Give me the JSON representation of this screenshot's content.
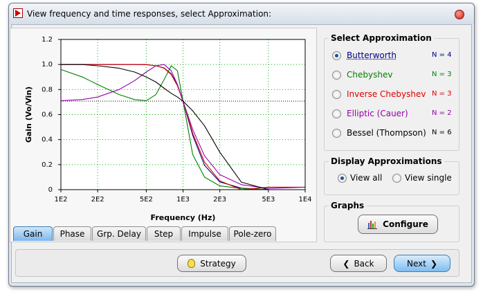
{
  "window": {
    "title": "View frequency and time responses, select Approximation:"
  },
  "chart_data": {
    "type": "line",
    "xlabel": "Frequency (Hz)",
    "ylabel": "Gain (Vo/Vin)",
    "x_log": true,
    "grid": true,
    "grid_color": "#00b000",
    "reference_line": 0.707,
    "xlim": [
      100,
      10000
    ],
    "xticks": [
      {
        "value": 100,
        "label": "1E2"
      },
      {
        "value": 200,
        "label": "2E2"
      },
      {
        "value": 500,
        "label": "5E2"
      },
      {
        "value": 1000,
        "label": "1E3"
      },
      {
        "value": 2000,
        "label": "2E3"
      },
      {
        "value": 5000,
        "label": "5E3"
      },
      {
        "value": 10000,
        "label": "1E4"
      }
    ],
    "ylim": [
      0,
      1.2
    ],
    "yticks": [
      0,
      0.2,
      0.4,
      0.6,
      0.8,
      {
        "value": 1,
        "label": "1.0"
      },
      1.2
    ],
    "x": [
      100,
      150,
      200,
      300,
      400,
      500,
      600,
      700,
      800,
      900,
      1000,
      1200,
      1500,
      2000,
      3000,
      5000,
      10000
    ],
    "series": [
      {
        "name": "Butterworth",
        "color": "#000080",
        "values": [
          1,
          1,
          1,
          1,
          1,
          0.998,
          0.99,
          0.972,
          0.925,
          0.836,
          0.707,
          0.434,
          0.194,
          0.062,
          0.012,
          0,
          0
        ]
      },
      {
        "name": "Chebyshev",
        "color": "#008000",
        "values": [
          0.96,
          0.9,
          0.84,
          0.76,
          0.72,
          0.71,
          0.76,
          0.88,
          0.99,
          0.95,
          0.707,
          0.28,
          0.1,
          0.03,
          0.01,
          0,
          0
        ]
      },
      {
        "name": "Inverse Chebyshev",
        "color": "#e00000",
        "values": [
          1,
          1,
          1,
          1,
          1,
          1,
          0.99,
          0.97,
          0.92,
          0.83,
          0.707,
          0.45,
          0.22,
          0.07,
          0,
          0.02,
          0.02
        ]
      },
      {
        "name": "Elliptic (Cauer)",
        "color": "#9400a8",
        "values": [
          0.71,
          0.72,
          0.74,
          0.8,
          0.87,
          0.94,
          0.99,
          1,
          0.95,
          0.84,
          0.707,
          0.48,
          0.27,
          0.12,
          0.04,
          0.01,
          0.02
        ]
      },
      {
        "name": "Bessel (Thompson)",
        "color": "#000000",
        "values": [
          1,
          1,
          0.99,
          0.97,
          0.94,
          0.9,
          0.86,
          0.81,
          0.77,
          0.74,
          0.707,
          0.63,
          0.51,
          0.3,
          0.06,
          0,
          0
        ]
      }
    ]
  },
  "tabs": [
    "Gain",
    "Phase",
    "Grp. Delay",
    "Step",
    "Impulse",
    "Pole-zero"
  ],
  "active_tab": 0,
  "approximation": {
    "title": "Select Approximation",
    "orders": [
      "N = 4",
      "N = 3",
      "N = 3",
      "N = 2",
      "N = 6"
    ],
    "selected": 0
  },
  "display": {
    "title": "Display Approximations",
    "options": [
      "View all",
      "View single"
    ],
    "selected": 0
  },
  "graphs": {
    "title": "Graphs",
    "button": "Configure"
  },
  "buttons": {
    "strategy": "Strategy",
    "back": "Back",
    "next": "Next"
  }
}
